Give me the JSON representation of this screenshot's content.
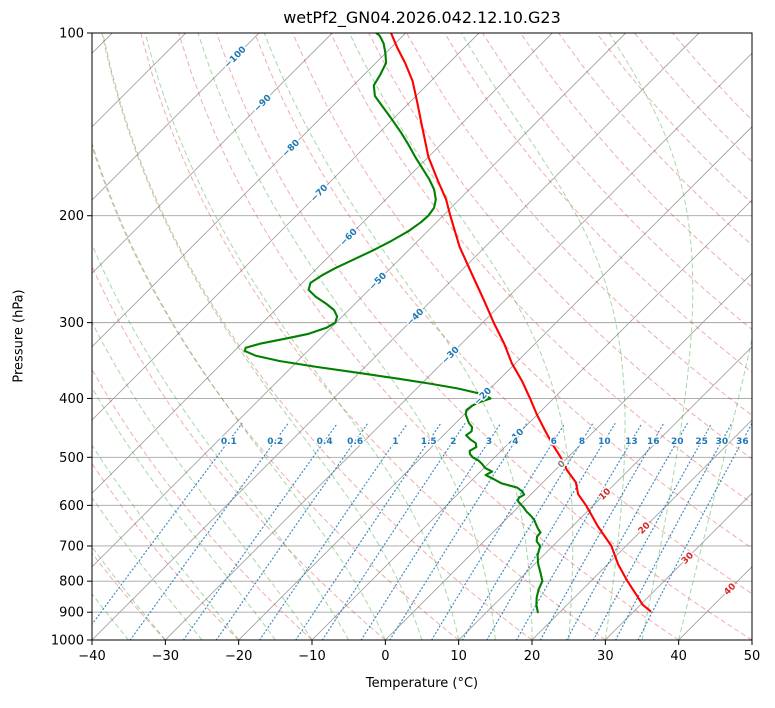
{
  "chart_data": {
    "type": "skewt_log_p",
    "title": "wetPf2_GN04.2026.042.12.10.G23",
    "xlabel": "Temperature (°C)",
    "ylabel": "Pressure (hPa)",
    "xlim": [
      -40,
      50
    ],
    "plim": [
      100,
      1000
    ],
    "skew_deg": 45,
    "grid": true,
    "temperature_ticks": [
      -40,
      -30,
      -20,
      -10,
      0,
      10,
      20,
      30,
      40,
      50
    ],
    "pressure_ticks": [
      100,
      200,
      300,
      400,
      500,
      600,
      700,
      800,
      900,
      1000
    ],
    "isotherms": {
      "min": -120,
      "max": 50,
      "step": 10
    },
    "dry_adiabats_theta_c": {
      "min": -30,
      "max": 170,
      "step": 10
    },
    "moist_adiabats_t0_c": {
      "min": -40,
      "max": 40,
      "step": 5
    },
    "mixing_ratio_g_kg": [
      0.1,
      0.2,
      0.4,
      0.6,
      1,
      1.5,
      2,
      3,
      4,
      6,
      8,
      10,
      13,
      16,
      20,
      25,
      30,
      36
    ],
    "mixing_ratio_label_pressure_hpa": 470,
    "mixing_ratio_top_pressure_hpa": 440,
    "isotherm_labels": [
      {
        "value": -100,
        "y": 57,
        "color": "#1f77b4"
      },
      {
        "value": -90,
        "y": 103,
        "color": "#1f77b4"
      },
      {
        "value": -80,
        "y": 148,
        "color": "#1f77b4"
      },
      {
        "value": -70,
        "y": 193,
        "color": "#1f77b4"
      },
      {
        "value": -60,
        "y": 237,
        "color": "#1f77b4"
      },
      {
        "value": -50,
        "y": 281,
        "color": "#1f77b4"
      },
      {
        "value": -40,
        "y": 317,
        "color": "#1f77b4"
      },
      {
        "value": -30,
        "y": 355,
        "color": "#1f77b4"
      },
      {
        "value": -20,
        "y": 396,
        "color": "#1f77b4"
      },
      {
        "value": -10,
        "y": 437,
        "color": "#1f77b4"
      },
      {
        "value": 0,
        "y": 464,
        "color": "#808080"
      },
      {
        "value": 10,
        "y": 494,
        "color": "#d62728"
      },
      {
        "value": 20,
        "y": 528,
        "color": "#d62728"
      },
      {
        "value": 30,
        "y": 558,
        "color": "#d62728"
      },
      {
        "value": 40,
        "y": 589,
        "color": "#d62728"
      }
    ],
    "series": [
      {
        "name": "temperature",
        "color": "#ff0000",
        "points": [
          [
            896,
            32.2
          ],
          [
            875,
            30.3
          ],
          [
            850,
            28.6
          ],
          [
            800,
            25.0
          ],
          [
            750,
            21.4
          ],
          [
            700,
            18.0
          ],
          [
            650,
            13.5
          ],
          [
            600,
            9.0
          ],
          [
            575,
            6.4
          ],
          [
            550,
            4.5
          ],
          [
            525,
            1.6
          ],
          [
            500,
            -1.0
          ],
          [
            475,
            -4.0
          ],
          [
            450,
            -7.0
          ],
          [
            425,
            -10.1
          ],
          [
            400,
            -13.2
          ],
          [
            375,
            -16.6
          ],
          [
            350,
            -20.5
          ],
          [
            325,
            -24.2
          ],
          [
            300,
            -28.5
          ],
          [
            275,
            -33.0
          ],
          [
            250,
            -38.0
          ],
          [
            225,
            -43.5
          ],
          [
            200,
            -49.0
          ],
          [
            188,
            -51.8
          ],
          [
            175,
            -55.5
          ],
          [
            160,
            -60.0
          ],
          [
            150,
            -62.8
          ],
          [
            140,
            -65.8
          ],
          [
            130,
            -69.0
          ],
          [
            120,
            -72.5
          ],
          [
            112,
            -76.0
          ],
          [
            106,
            -79.0
          ],
          [
            100,
            -82.0
          ]
        ]
      },
      {
        "name": "dewpoint",
        "color": "#008000",
        "points": [
          [
            900,
            17.0
          ],
          [
            875,
            15.8
          ],
          [
            850,
            14.8
          ],
          [
            825,
            14.0
          ],
          [
            800,
            13.4
          ],
          [
            775,
            12.0
          ],
          [
            750,
            10.5
          ],
          [
            725,
            9.2
          ],
          [
            700,
            8.3
          ],
          [
            688,
            7.2
          ],
          [
            676,
            6.6
          ],
          [
            665,
            6.5
          ],
          [
            655,
            5.6
          ],
          [
            645,
            4.8
          ],
          [
            635,
            4.0
          ],
          [
            625,
            3.0
          ],
          [
            615,
            1.8
          ],
          [
            605,
            0.8
          ],
          [
            598,
            0.0
          ],
          [
            590,
            -0.9
          ],
          [
            583,
            -1.2
          ],
          [
            576,
            -0.9
          ],
          [
            569,
            -1.6
          ],
          [
            561,
            -2.8
          ],
          [
            552,
            -5.5
          ],
          [
            543,
            -7.2
          ],
          [
            535,
            -8.8
          ],
          [
            528,
            -8.4
          ],
          [
            521,
            -9.8
          ],
          [
            513,
            -10.8
          ],
          [
            506,
            -11.8
          ],
          [
            500,
            -13.0
          ],
          [
            494,
            -13.8
          ],
          [
            488,
            -14.3
          ],
          [
            481,
            -13.9
          ],
          [
            474,
            -14.5
          ],
          [
            467,
            -15.8
          ],
          [
            460,
            -16.9
          ],
          [
            453,
            -16.7
          ],
          [
            446,
            -17.2
          ],
          [
            439,
            -18.2
          ],
          [
            432,
            -19.0
          ],
          [
            425,
            -19.8
          ],
          [
            418,
            -20.3
          ],
          [
            411,
            -20.1
          ],
          [
            405,
            -19.5
          ],
          [
            400,
            -18.6
          ],
          [
            396,
            -19.5
          ],
          [
            391,
            -21.5
          ],
          [
            385,
            -24.5
          ],
          [
            378,
            -29.0
          ],
          [
            371,
            -34.0
          ],
          [
            363,
            -40.0
          ],
          [
            355,
            -46.5
          ],
          [
            347,
            -52.5
          ],
          [
            340,
            -56.5
          ],
          [
            334,
            -58.6
          ],
          [
            330,
            -58.9
          ],
          [
            325,
            -57.5
          ],
          [
            319,
            -54.8
          ],
          [
            313,
            -52.2
          ],
          [
            306,
            -50.6
          ],
          [
            300,
            -50.1
          ],
          [
            293,
            -50.7
          ],
          [
            286,
            -52.0
          ],
          [
            279,
            -54.0
          ],
          [
            272,
            -56.3
          ],
          [
            265,
            -58.2
          ],
          [
            258,
            -58.9
          ],
          [
            251,
            -58.4
          ],
          [
            244,
            -57.5
          ],
          [
            236,
            -56.2
          ],
          [
            228,
            -54.8
          ],
          [
            220,
            -53.6
          ],
          [
            212,
            -52.6
          ],
          [
            205,
            -52.1
          ],
          [
            200,
            -52.0
          ],
          [
            194,
            -52.3
          ],
          [
            188,
            -53.2
          ],
          [
            181,
            -54.8
          ],
          [
            174,
            -56.9
          ],
          [
            167,
            -59.3
          ],
          [
            160,
            -61.8
          ],
          [
            153,
            -64.3
          ],
          [
            146,
            -67.0
          ],
          [
            139,
            -70.0
          ],
          [
            132,
            -73.2
          ],
          [
            127,
            -75.6
          ],
          [
            122,
            -77.2
          ],
          [
            117,
            -77.8
          ],
          [
            112,
            -78.6
          ],
          [
            108,
            -80.0
          ],
          [
            104,
            -81.6
          ],
          [
            101,
            -83.2
          ],
          [
            100,
            -84.0
          ]
        ]
      }
    ],
    "colors": {
      "isotherm": "#a3a3a3",
      "grid": "#a3a3a3",
      "dry_adiabat": "rgba(214,39,40,0.38)",
      "moist_adiabat": "rgba(44,160,44,0.42)",
      "mixing_ratio": "rgba(31,119,180,0.85)",
      "mixing_label": "#1f77b4",
      "axis": "#000000",
      "background": "#ffffff"
    }
  }
}
